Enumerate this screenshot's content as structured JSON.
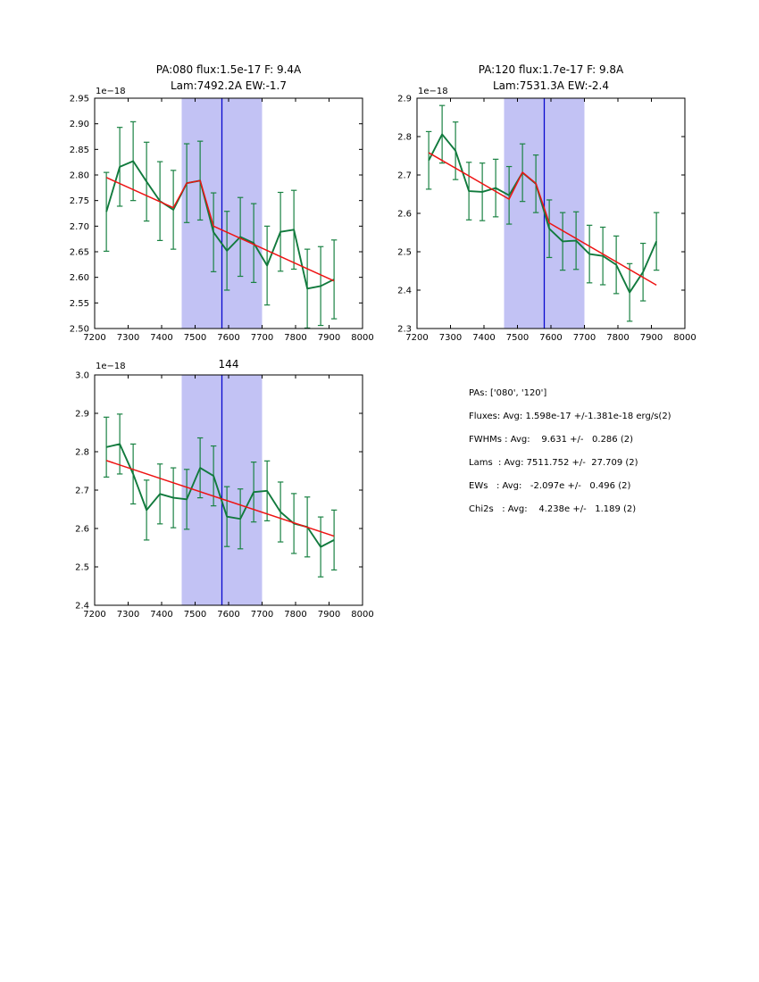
{
  "figure": {
    "background": "#ffffff"
  },
  "colors": {
    "data_line": "#117a3d",
    "error_bar": "#1a8243",
    "fit_line": "#ee1313",
    "band": "#c2c2f4",
    "center_line": "#0909cf",
    "axes": "#000000"
  },
  "text_panel": {
    "lines": [
      "PAs: ['080', '120']",
      "Fluxes: Avg: 1.598e-17 +/-1.381e-18 erg/s(2)",
      "FWHMs : Avg:    9.631 +/-   0.286 (2)",
      "Lams  : Avg: 7511.752 +/-  27.709 (2)",
      "EWs   : Avg:   -2.097e +/-   0.496 (2)",
      "Chi2s   : Avg:    4.238e +/-   1.189 (2)"
    ]
  },
  "chart_data": [
    {
      "type": "line",
      "title_lines": [
        "PA:080 flux:1.5e-17 F: 9.4A",
        "Lam:7492.2A EW:-1.7"
      ],
      "y_offset_label": "1e−18",
      "xlim": [
        7200,
        8000
      ],
      "ylim": [
        2.5,
        2.95
      ],
      "xticks": [
        7200,
        7300,
        7400,
        7500,
        7600,
        7700,
        7800,
        7900,
        8000
      ],
      "xtick_labels": [
        "7200",
        "7300",
        "7400",
        "7500",
        "7600",
        "7700",
        "7800",
        "7900",
        "8000"
      ],
      "yticks": [
        2.5,
        2.55,
        2.6,
        2.65,
        2.7,
        2.75,
        2.8,
        2.85,
        2.9,
        2.95
      ],
      "ytick_labels": [
        "2.50",
        "2.55",
        "2.60",
        "2.65",
        "2.70",
        "2.75",
        "2.80",
        "2.85",
        "2.90",
        "2.95"
      ],
      "x": [
        7235,
        7275,
        7315,
        7355,
        7395,
        7435,
        7475,
        7515,
        7555,
        7595,
        7635,
        7675,
        7715,
        7755,
        7795,
        7835,
        7875,
        7915
      ],
      "y": [
        2.728,
        2.816,
        2.827,
        2.787,
        2.749,
        2.732,
        2.784,
        2.789,
        2.688,
        2.652,
        2.679,
        2.667,
        2.623,
        2.689,
        2.693,
        2.578,
        2.583,
        2.596
      ],
      "yerr": 0.077,
      "fit": {
        "x": [
          7235,
          7435,
          7475,
          7515,
          7555,
          7915
        ],
        "y": [
          2.795,
          2.736,
          2.784,
          2.789,
          2.7,
          2.593
        ]
      },
      "band_x": [
        7460,
        7700
      ],
      "center_line_x": 7580,
      "grid": false,
      "legend": null
    },
    {
      "type": "line",
      "title_lines": [
        "PA:120 flux:1.7e-17 F: 9.8A",
        "Lam:7531.3A EW:-2.4"
      ],
      "y_offset_label": "1e−18",
      "xlim": [
        7200,
        8000
      ],
      "ylim": [
        2.3,
        2.9
      ],
      "xticks": [
        7200,
        7300,
        7400,
        7500,
        7600,
        7700,
        7800,
        7900,
        8000
      ],
      "xtick_labels": [
        "7200",
        "7300",
        "7400",
        "7500",
        "7600",
        "7700",
        "7800",
        "7900",
        "8000"
      ],
      "yticks": [
        2.3,
        2.4,
        2.5,
        2.6,
        2.7,
        2.8,
        2.9
      ],
      "ytick_labels": [
        "2.3",
        "2.4",
        "2.5",
        "2.6",
        "2.7",
        "2.8",
        "2.9"
      ],
      "x": [
        7235,
        7275,
        7315,
        7355,
        7395,
        7435,
        7475,
        7515,
        7555,
        7595,
        7635,
        7675,
        7715,
        7755,
        7795,
        7835,
        7875,
        7915
      ],
      "y": [
        2.738,
        2.806,
        2.763,
        2.658,
        2.656,
        2.666,
        2.647,
        2.706,
        2.677,
        2.56,
        2.527,
        2.529,
        2.494,
        2.489,
        2.466,
        2.394,
        2.447,
        2.527
      ],
      "yerr": 0.075,
      "fit": {
        "x": [
          7235,
          7475,
          7515,
          7555,
          7595,
          7915
        ],
        "y": [
          2.758,
          2.637,
          2.707,
          2.678,
          2.575,
          2.413
        ]
      },
      "band_x": [
        7460,
        7700
      ],
      "center_line_x": 7580,
      "grid": false,
      "legend": null
    },
    {
      "type": "line",
      "title_lines": [
        "144"
      ],
      "y_offset_label": "1e−18",
      "xlim": [
        7200,
        8000
      ],
      "ylim": [
        2.4,
        3.0
      ],
      "xticks": [
        7200,
        7300,
        7400,
        7500,
        7600,
        7700,
        7800,
        7900,
        8000
      ],
      "xtick_labels": [
        "7200",
        "7300",
        "7400",
        "7500",
        "7600",
        "7700",
        "7800",
        "7900",
        "8000"
      ],
      "yticks": [
        2.4,
        2.5,
        2.6,
        2.7,
        2.8,
        2.9,
        3.0
      ],
      "ytick_labels": [
        "2.4",
        "2.5",
        "2.6",
        "2.7",
        "2.8",
        "2.9",
        "3.0"
      ],
      "x": [
        7235,
        7275,
        7315,
        7355,
        7395,
        7435,
        7475,
        7515,
        7555,
        7595,
        7635,
        7675,
        7715,
        7755,
        7795,
        7835,
        7875,
        7915
      ],
      "y": [
        2.812,
        2.82,
        2.742,
        2.648,
        2.69,
        2.68,
        2.676,
        2.758,
        2.737,
        2.631,
        2.625,
        2.695,
        2.698,
        2.643,
        2.613,
        2.604,
        2.552,
        2.57
      ],
      "yerr": 0.078,
      "fit": {
        "x": [
          7235,
          7915
        ],
        "y": [
          2.777,
          2.58
        ]
      },
      "band_x": [
        7460,
        7700
      ],
      "center_line_x": 7580,
      "grid": false,
      "legend": null
    }
  ]
}
